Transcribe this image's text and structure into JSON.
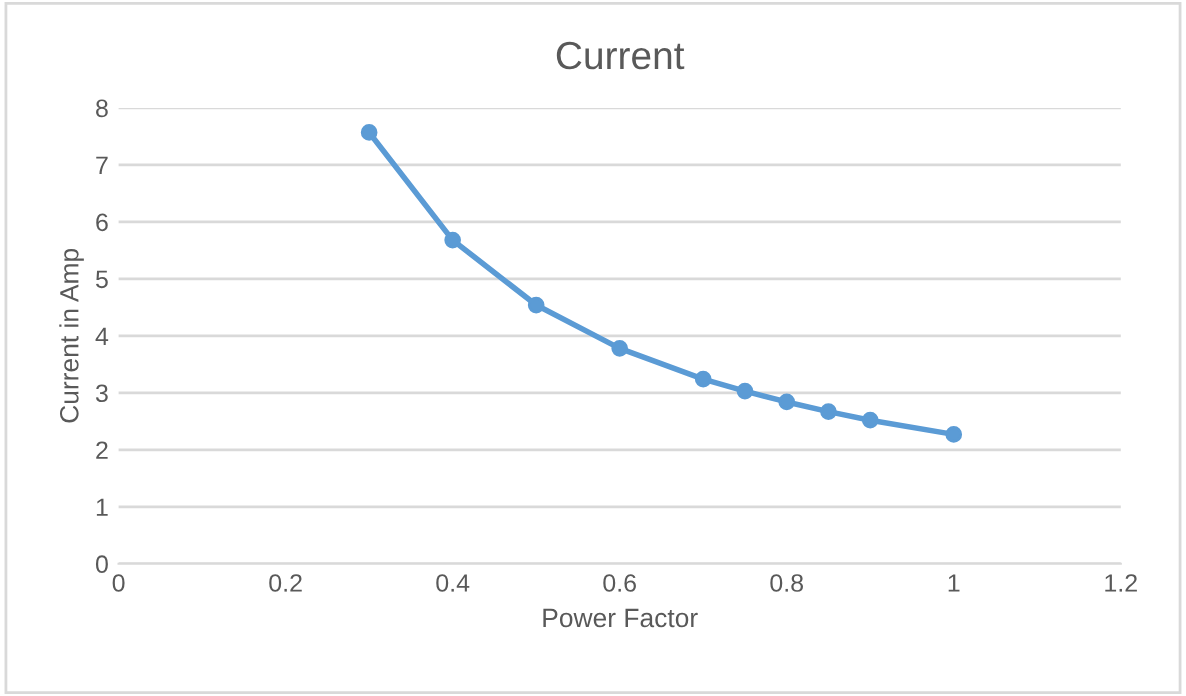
{
  "chart_data": {
    "type": "line",
    "title": "Current",
    "xlabel": "Power Factor",
    "ylabel": "Current in Amp",
    "x": [
      0.3,
      0.4,
      0.5,
      0.6,
      0.7,
      0.75,
      0.8,
      0.85,
      0.9,
      1
    ],
    "series": [
      {
        "color": "#5b9bd5",
        "values": [
          7.57,
          5.68,
          4.54,
          3.78,
          3.24,
          3.03,
          2.84,
          2.67,
          2.52,
          2.27
        ]
      }
    ],
    "xlim": [
      0,
      1.2
    ],
    "xticks": [
      0,
      0.2,
      0.4,
      0.6,
      0.8,
      1,
      1.2
    ],
    "ylim": [
      0,
      8
    ],
    "yticks": [
      0,
      1,
      2,
      3,
      4,
      5,
      6,
      7,
      8
    ],
    "grid": "y",
    "marker": "circle",
    "line_style": "solid"
  }
}
